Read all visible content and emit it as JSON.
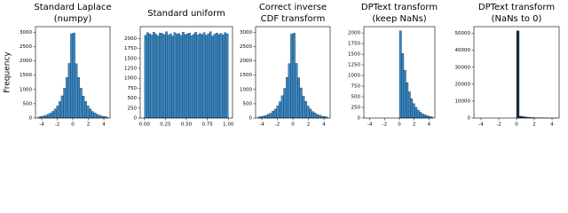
{
  "chart_data": [
    {
      "type": "histogram",
      "title": [
        "Standard Laplace",
        "(numpy)"
      ],
      "ylabel": "Frequency",
      "color": "#3b87c2",
      "bins": [
        -4.5,
        -4.2,
        -3.9,
        -3.6,
        -3.3,
        -3.0,
        -2.7,
        -2.4,
        -2.1,
        -1.8,
        -1.5,
        -1.2,
        -0.9,
        -0.6,
        -0.3,
        0,
        0.3,
        0.6,
        0.9,
        1.2,
        1.5,
        1.8,
        2.1,
        2.4,
        2.7,
        3.0,
        3.3,
        3.6,
        3.9,
        4.2,
        4.5
      ],
      "values": [
        39,
        52,
        70,
        95,
        129,
        174,
        234,
        316,
        427,
        576,
        778,
        1050,
        1417,
        1913,
        2950,
        2980,
        1900,
        1420,
        1045,
        770,
        580,
        425,
        318,
        230,
        176,
        127,
        96,
        68,
        53,
        40
      ],
      "xlim": [
        -4.8,
        4.8
      ],
      "xticks": [
        -4,
        -2,
        0,
        2,
        4
      ],
      "ylim": [
        0,
        3200
      ],
      "yticks": [
        0,
        500,
        1000,
        1500,
        2000,
        2500,
        3000
      ]
    },
    {
      "type": "histogram",
      "title": [
        "Standard uniform"
      ],
      "color": "#3b87c2",
      "bins": [
        0,
        0.025,
        0.05,
        0.075,
        0.1,
        0.125,
        0.15,
        0.175,
        0.2,
        0.225,
        0.25,
        0.275,
        0.3,
        0.325,
        0.35,
        0.375,
        0.4,
        0.425,
        0.45,
        0.475,
        0.5,
        0.525,
        0.55,
        0.575,
        0.6,
        0.625,
        0.65,
        0.675,
        0.7,
        0.725,
        0.75,
        0.775,
        0.8,
        0.825,
        0.85,
        0.875,
        0.9,
        0.925,
        0.95,
        0.975,
        1.0
      ],
      "values": [
        2080,
        2150,
        2120,
        2090,
        2160,
        2110,
        2070,
        2140,
        2130,
        2100,
        2170,
        2090,
        2120,
        2060,
        2150,
        2110,
        2130,
        2080,
        2160,
        2100,
        2120,
        2140,
        2070,
        2110,
        2160,
        2090,
        2130,
        2100,
        2150,
        2080,
        2120,
        2170,
        2060,
        2110,
        2140,
        2100,
        2130,
        2090,
        2150,
        2120
      ],
      "xlim": [
        -0.05,
        1.05
      ],
      "xticks": [
        {
          "value": 0,
          "label": "0.00"
        },
        {
          "value": 0.25,
          "label": "0.25"
        },
        {
          "value": 0.5,
          "label": "0.50"
        },
        {
          "value": 0.75,
          "label": "0.75"
        },
        {
          "value": 1,
          "label": "1.00"
        }
      ],
      "ylim": [
        0,
        2300
      ],
      "yticks": [
        0,
        250,
        500,
        750,
        1000,
        1250,
        1500,
        1750,
        2000
      ]
    },
    {
      "type": "histogram",
      "title": [
        "Correct inverse",
        "CDF transform"
      ],
      "color": "#3b87c2",
      "bins": [
        -4.5,
        -4.2,
        -3.9,
        -3.6,
        -3.3,
        -3.0,
        -2.7,
        -2.4,
        -2.1,
        -1.8,
        -1.5,
        -1.2,
        -0.9,
        -0.6,
        -0.3,
        0,
        0.3,
        0.6,
        0.9,
        1.2,
        1.5,
        1.8,
        2.1,
        2.4,
        2.7,
        3.0,
        3.3,
        3.6,
        3.9,
        4.2,
        4.5
      ],
      "values": [
        41,
        50,
        72,
        93,
        131,
        170,
        238,
        312,
        430,
        570,
        782,
        1040,
        1425,
        1905,
        2940,
        2970,
        1915,
        1410,
        1055,
        765,
        585,
        420,
        320,
        228,
        178,
        125,
        98,
        66,
        55,
        38
      ],
      "xlim": [
        -4.8,
        4.8
      ],
      "xticks": [
        -4,
        -2,
        0,
        2,
        4
      ],
      "ylim": [
        0,
        3200
      ],
      "yticks": [
        0,
        500,
        1000,
        1500,
        2000,
        2500,
        3000
      ]
    },
    {
      "type": "histogram",
      "title": [
        "DPText transform",
        "(keep NaNs)"
      ],
      "color": "#3b87c2",
      "bins": [
        0,
        0.3,
        0.6,
        0.9,
        1.2,
        1.5,
        1.8,
        2.1,
        2.4,
        2.7,
        3.0,
        3.3,
        3.6,
        3.9,
        4.2,
        4.5
      ],
      "values": [
        2050,
        1520,
        1125,
        835,
        618,
        458,
        340,
        252,
        187,
        138,
        102,
        76,
        56,
        42,
        31
      ],
      "xlim": [
        -4.8,
        4.8
      ],
      "xticks": [
        -4,
        -2,
        0,
        2,
        4
      ],
      "ylim": [
        0,
        2150
      ],
      "yticks": [
        0,
        250,
        500,
        750,
        1000,
        1250,
        1500,
        1750,
        2000
      ]
    },
    {
      "type": "histogram",
      "title": [
        "DPText transform",
        "(NaNs to 0)"
      ],
      "color": "#1a2d3d",
      "bins": [
        0,
        0.3,
        0.6,
        0.9,
        1.2,
        1.5,
        1.8,
        2.1,
        2.4,
        2.7,
        3.0,
        3.3,
        3.6,
        3.9,
        4.2,
        4.5
      ],
      "values": [
        51500,
        1100,
        820,
        600,
        450,
        330,
        245,
        180,
        135,
        100,
        74,
        55,
        40,
        30,
        22
      ],
      "xlim": [
        -4.8,
        4.8
      ],
      "xticks": [
        -4,
        -2,
        0,
        2,
        4
      ],
      "ylim": [
        0,
        54000
      ],
      "yticks": [
        0,
        10000,
        20000,
        30000,
        40000,
        50000
      ]
    }
  ]
}
